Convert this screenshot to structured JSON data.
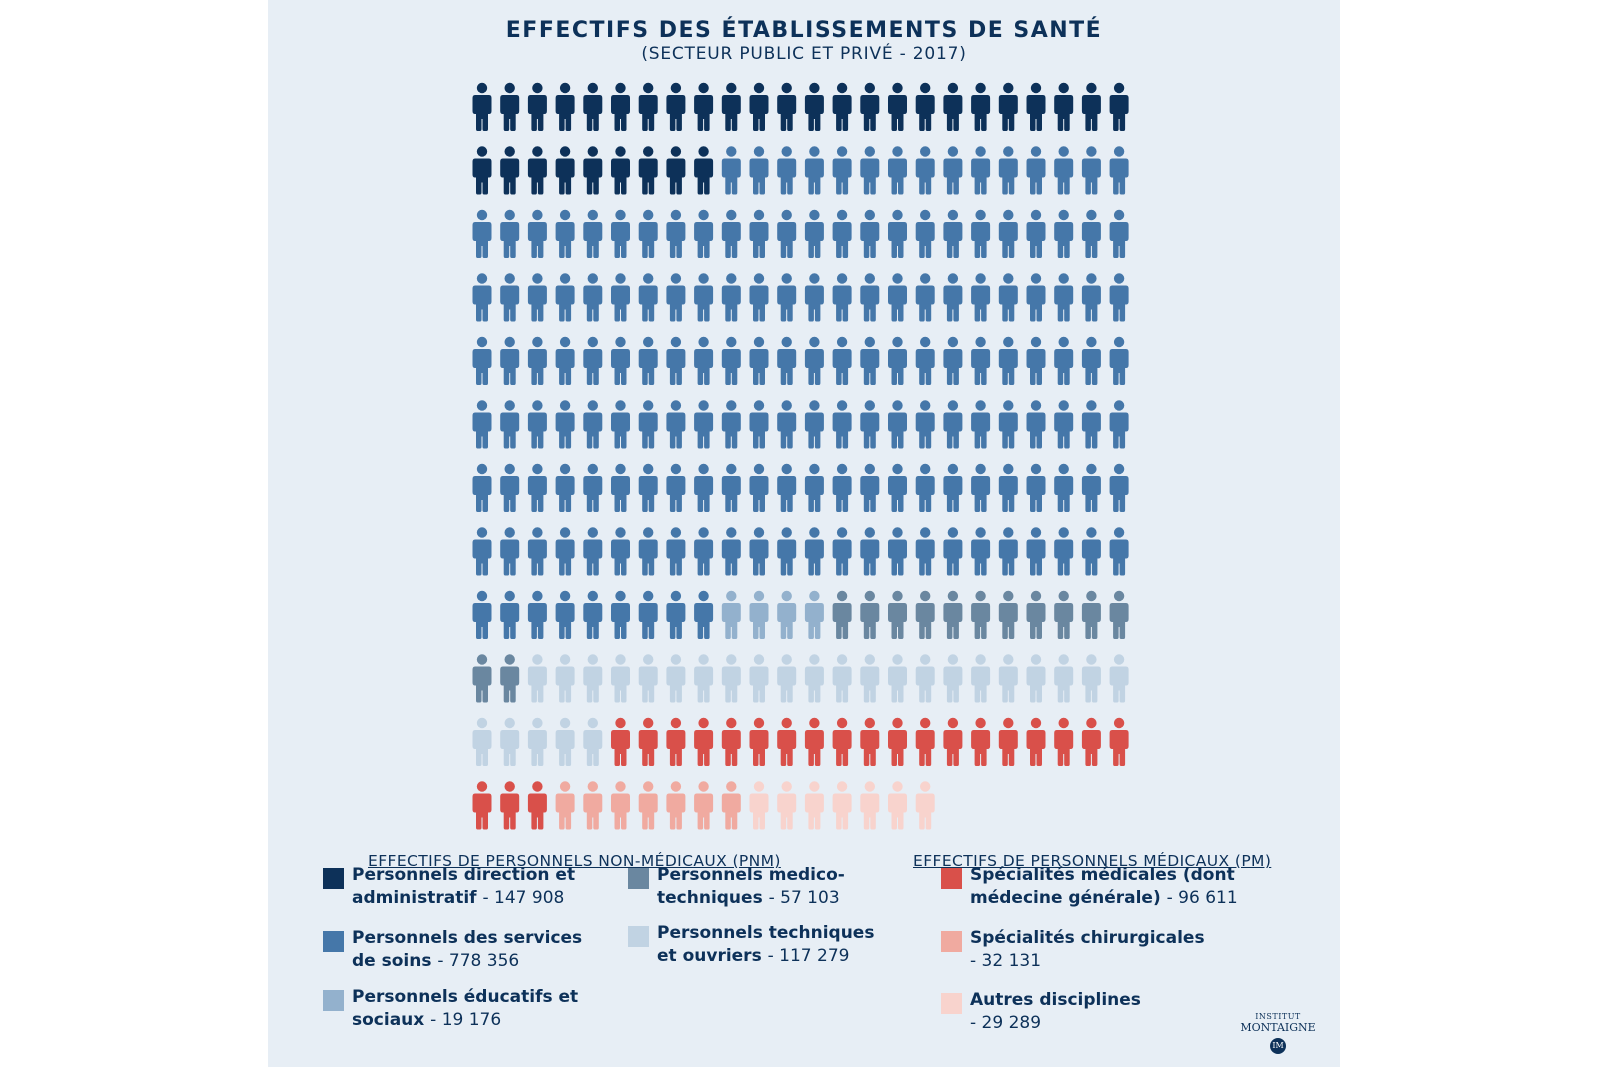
{
  "title": "EFFECTIFS DES ÉTABLISSEMENTS DE SANTÉ",
  "subtitle": "(SECTEUR PUBLIC ET PRIVÉ - 2017)",
  "legend": {
    "pnm_heading": "EFFECTIFS DE PERSONNELS NON-MÉDICAUX (PNM)",
    "pm_heading": "EFFECTIFS DE PERSONNELS MÉDICAUX (PM)"
  },
  "logo": {
    "top": "INSTITUT",
    "main": "MONTAIGNE",
    "badge": "IM"
  },
  "chart_data": {
    "type": "pictogram",
    "title": "EFFECTIFS DES ÉTABLISSEMENTS DE SANTÉ",
    "subtitle": "(SECTEUR PUBLIC ET PRIVÉ - 2017)",
    "grid": {
      "columns": 24,
      "rows": 12
    },
    "categories": [
      {
        "group": "pnm",
        "label": "Personnels direction et administratif",
        "value_text": "- 147 908",
        "value": 147908,
        "icons": 33,
        "color": "#0d3159"
      },
      {
        "group": "pnm",
        "label": "Personnels des services de soins",
        "value_text": "- 778 356",
        "value": 778356,
        "icons": 168,
        "color": "#4577a9"
      },
      {
        "group": "pnm",
        "label": "Personnels éducatifs et sociaux",
        "value_text": "- 19 176",
        "value": 19176,
        "icons": 4,
        "color": "#93b1cd"
      },
      {
        "group": "pnm",
        "label": "Personnels medico-techniques",
        "value_text": "- 57 103",
        "value": 57103,
        "icons": 13,
        "color": "#6a87a0"
      },
      {
        "group": "pnm",
        "label": "Personnels techniques et ouvriers",
        "value_text": "- 117 279",
        "value": 117279,
        "icons": 27,
        "color": "#c1d3e3"
      },
      {
        "group": "pm",
        "label": "Spécialités médicales (dont médecine générale)",
        "value_text": "- 96 611",
        "value": 96611,
        "icons": 22,
        "color": "#d9504a"
      },
      {
        "group": "pm",
        "label": "Spécialités chirurgicales",
        "value_text": "- 32 131",
        "value": 32131,
        "icons": 7,
        "color": "#f0aaa0"
      },
      {
        "group": "pm",
        "label": "Autres disciplines",
        "value_text": "- 29 289",
        "value": 29289,
        "icons": 7,
        "color": "#f8d3cd"
      }
    ]
  }
}
